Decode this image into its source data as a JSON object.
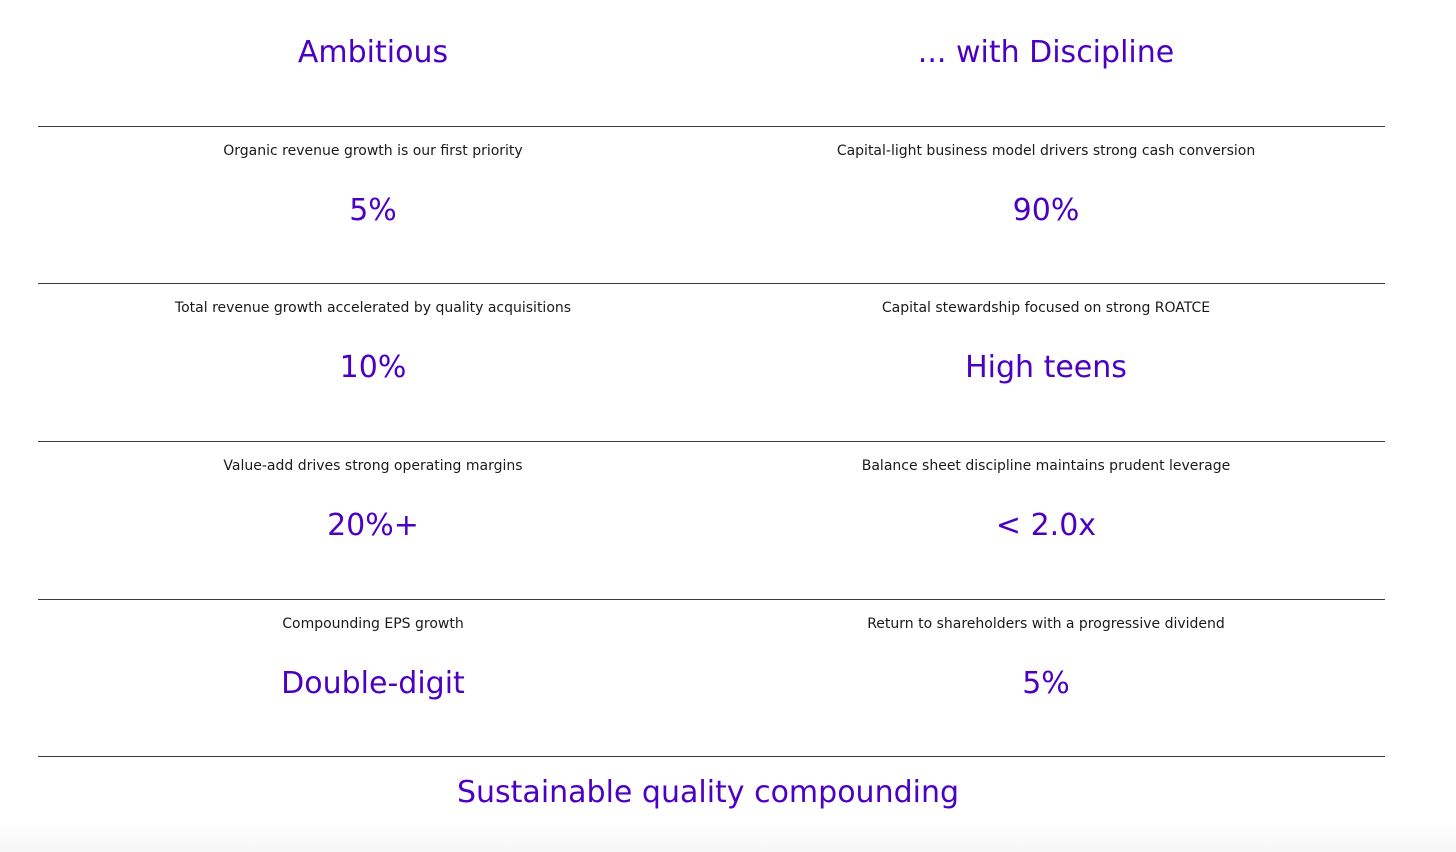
{
  "headers": {
    "left": "Ambitious",
    "right": "... with Discipline"
  },
  "rows": [
    {
      "left": {
        "description": "Organic revenue growth is our first priority",
        "metric": "5%"
      },
      "right": {
        "description": "Capital-light business model drivers strong cash conversion",
        "metric": "90%"
      }
    },
    {
      "left": {
        "description": "Total revenue growth accelerated by quality acquisitions",
        "metric": "10%"
      },
      "right": {
        "description": "Capital stewardship focused on strong ROATCE",
        "metric": "High teens"
      }
    },
    {
      "left": {
        "description": "Value-add drives strong operating margins",
        "metric": "20%+"
      },
      "right": {
        "description": "Balance sheet discipline maintains prudent leverage",
        "metric": "< 2.0x"
      }
    },
    {
      "left": {
        "description": "Compounding EPS growth",
        "metric": "Double-digit"
      },
      "right": {
        "description": "Return to shareholders with a progressive dividend",
        "metric": "5%"
      }
    }
  ],
  "footer": "Sustainable quality compounding",
  "colors": {
    "accent": "#4c00c2",
    "text": "#1a1a1a",
    "rule": "#3a3a3a"
  }
}
